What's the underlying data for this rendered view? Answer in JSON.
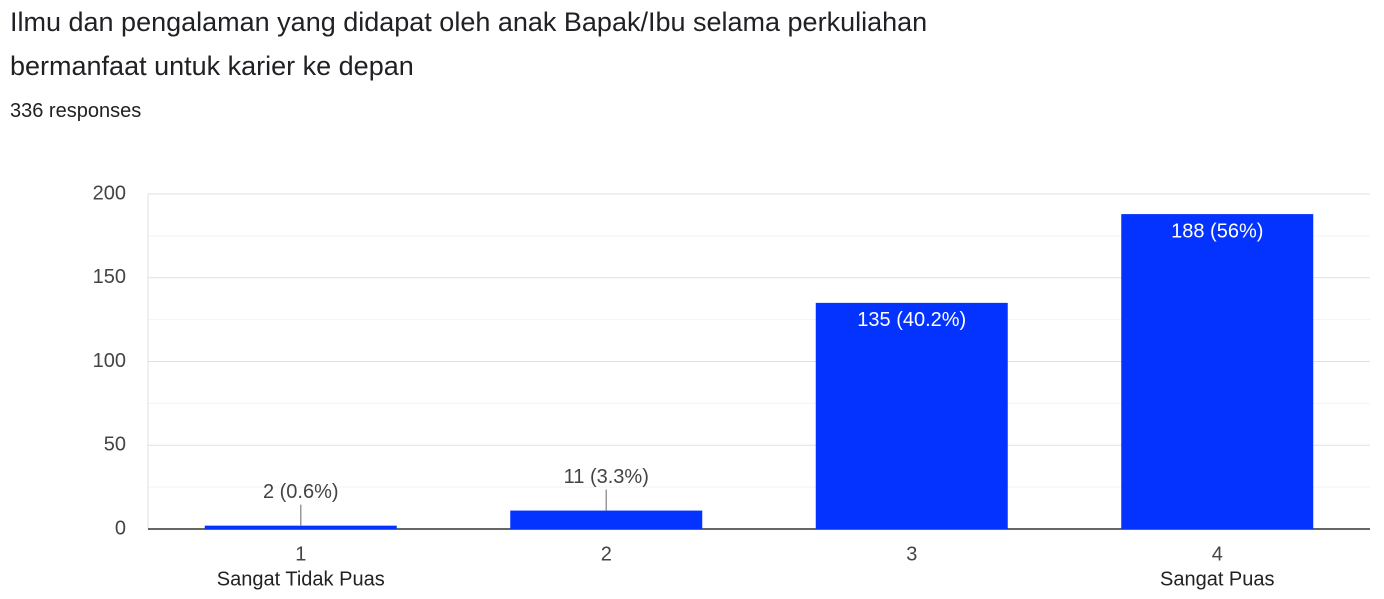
{
  "chart_data": {
    "type": "bar",
    "title": "Ilmu dan pengalaman yang didapat oleh anak Bapak/Ibu selama perkuliahan bermanfaat untuk karier ke depan",
    "subtitle": "336 responses",
    "categories": [
      "1",
      "2",
      "3",
      "4"
    ],
    "category_sublabels": [
      "Sangat Tidak Puas",
      null,
      null,
      "Sangat Puas"
    ],
    "values": [
      2,
      11,
      135,
      188
    ],
    "value_labels": [
      "2 (0.6%)",
      "11 (3.3%)",
      "135 (40.2%)",
      "188 (56%)"
    ],
    "color": "#0433ff",
    "ylim": [
      0,
      200
    ],
    "yticks": [
      0,
      50,
      100,
      150,
      200
    ],
    "minor_yticks": [
      25,
      75,
      125,
      175
    ],
    "grid": true
  }
}
